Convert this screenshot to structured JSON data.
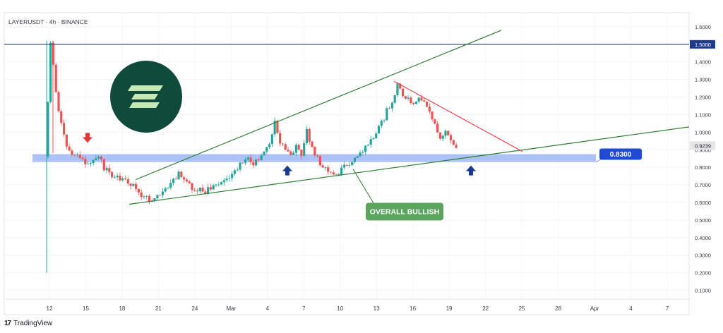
{
  "header": {
    "symbol": "LAYERUSDT · 4h · BINANCE"
  },
  "footer": {
    "brand": "TradingView",
    "logo_glyph": "17"
  },
  "colors": {
    "up": "#26a69a",
    "down": "#ef5350",
    "trendline": "#2e7d32",
    "resistance_line": "#f23645",
    "support_zone": "#9fb8f7",
    "level_line": "#2a3f7a",
    "label_blue": "#1e4bd2",
    "callout_green": "#5aa55e",
    "logo_bg": "#0f4a3b",
    "logo_fg": "#c6e9b6",
    "arrow_blue": "#1a3a8f",
    "arrow_red": "#e53935"
  },
  "chart_data": {
    "type": "candlestick",
    "title": "",
    "ylim": [
      0.05,
      1.68
    ],
    "y_ticks": [
      "1.6000",
      "1.5000",
      "1.4000",
      "1.3000",
      "1.2000",
      "1.1000",
      "1.0000",
      "0.9000",
      "0.8000",
      "0.7000",
      "0.6000",
      "0.5000",
      "0.4000",
      "0.3000",
      "0.2000",
      "0.1000"
    ],
    "x_ticks": [
      "12",
      "15",
      "18",
      "21",
      "24",
      "Mar",
      "4",
      "7",
      "10",
      "13",
      "16",
      "19",
      "22",
      "25",
      "28",
      "Apr",
      "4",
      "7"
    ],
    "current_price": "0.9239",
    "horizontal_level": {
      "price": 1.5,
      "label": "1.5000"
    },
    "support_zone": {
      "price_low": 0.83,
      "price_high": 0.875,
      "label": "0.8300"
    },
    "price_path": [
      [
        0,
        0.86
      ],
      [
        1,
        1.52
      ],
      [
        2,
        1.22
      ],
      [
        3,
        1.05
      ],
      [
        4,
        0.92
      ],
      [
        5,
        0.88
      ],
      [
        6,
        0.86
      ],
      [
        7,
        0.84
      ],
      [
        8,
        0.82
      ],
      [
        9,
        0.84
      ],
      [
        10,
        0.86
      ],
      [
        11,
        0.8
      ],
      [
        12,
        0.77
      ],
      [
        13,
        0.74
      ],
      [
        14,
        0.73
      ],
      [
        15,
        0.72
      ],
      [
        16,
        0.7
      ],
      [
        17,
        0.68
      ],
      [
        18,
        0.64
      ],
      [
        19,
        0.62
      ],
      [
        20,
        0.6
      ],
      [
        21,
        0.63
      ],
      [
        22,
        0.65
      ],
      [
        23,
        0.7
      ],
      [
        24,
        0.73
      ],
      [
        25,
        0.76
      ],
      [
        26,
        0.74
      ],
      [
        27,
        0.7
      ],
      [
        28,
        0.68
      ],
      [
        29,
        0.67
      ],
      [
        30,
        0.66
      ],
      [
        31,
        0.68
      ],
      [
        32,
        0.7
      ],
      [
        33,
        0.72
      ],
      [
        34,
        0.74
      ],
      [
        35,
        0.76
      ],
      [
        36,
        0.8
      ],
      [
        37,
        0.82
      ],
      [
        38,
        0.84
      ],
      [
        39,
        0.82
      ],
      [
        40,
        0.85
      ],
      [
        41,
        0.88
      ],
      [
        42,
        0.92
      ],
      [
        43,
        1.06
      ],
      [
        44,
        0.95
      ],
      [
        45,
        0.9
      ],
      [
        46,
        0.86
      ],
      [
        47,
        0.92
      ],
      [
        48,
        0.88
      ],
      [
        49,
        1.02
      ],
      [
        50,
        0.9
      ],
      [
        51,
        0.85
      ],
      [
        52,
        0.8
      ],
      [
        53,
        0.78
      ],
      [
        54,
        0.76
      ],
      [
        55,
        0.77
      ],
      [
        56,
        0.8
      ],
      [
        57,
        0.82
      ],
      [
        58,
        0.86
      ],
      [
        59,
        0.88
      ],
      [
        60,
        0.92
      ],
      [
        61,
        0.96
      ],
      [
        62,
        1.0
      ],
      [
        63,
        1.05
      ],
      [
        64,
        1.12
      ],
      [
        65,
        1.18
      ],
      [
        66,
        1.27
      ],
      [
        67,
        1.22
      ],
      [
        68,
        1.18
      ],
      [
        69,
        1.16
      ],
      [
        70,
        1.2
      ],
      [
        71,
        1.17
      ],
      [
        72,
        1.12
      ],
      [
        73,
        1.05
      ],
      [
        74,
        0.98
      ],
      [
        75,
        1.0
      ],
      [
        76,
        0.96
      ],
      [
        77,
        0.92
      ]
    ],
    "price_path_note_x_span": [
      0,
      77
    ],
    "annotations": {
      "callout": "OVERALL BULLISH",
      "arrows": [
        {
          "dir": "down",
          "color": "red"
        },
        {
          "dir": "up",
          "color": "blue"
        },
        {
          "dir": "up",
          "color": "blue"
        }
      ]
    }
  }
}
